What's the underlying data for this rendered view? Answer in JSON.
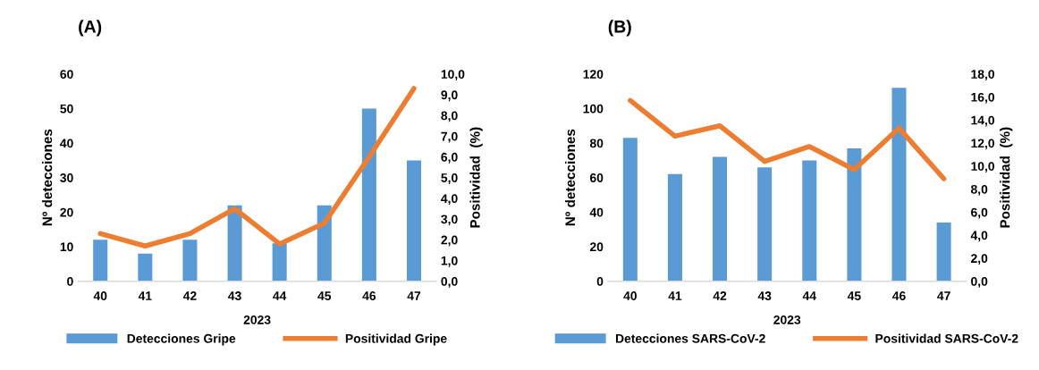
{
  "chart_data": [
    {
      "type": "bar",
      "title": "(A)",
      "xlabel": "2023",
      "ylabel": "Nº detecciones",
      "y2label": "Positividad  (%)",
      "categories": [
        "40",
        "41",
        "42",
        "43",
        "44",
        "45",
        "46",
        "47"
      ],
      "series": [
        {
          "name": "Detecciones Gripe",
          "type": "bar",
          "color": "#5b9bd5",
          "values": [
            12,
            8,
            12,
            22,
            11,
            22,
            50,
            35
          ]
        },
        {
          "name": "Positividad Gripe",
          "type": "line",
          "axis": "y2",
          "color": "#ed7d31",
          "values": [
            2.3,
            1.7,
            2.3,
            3.5,
            1.8,
            2.8,
            6.0,
            9.3
          ]
        }
      ],
      "ylim": [
        0,
        60
      ],
      "yticks": [
        0,
        10,
        20,
        30,
        40,
        50,
        60
      ],
      "y2lim": [
        0,
        10
      ],
      "y2ticks": [
        {
          "value": 0,
          "label": "0,0"
        },
        {
          "value": 1,
          "label": "1,0"
        },
        {
          "value": 2,
          "label": "2,0"
        },
        {
          "value": 3,
          "label": "3,0"
        },
        {
          "value": 4,
          "label": "4,0"
        },
        {
          "value": 5,
          "label": "5,0"
        },
        {
          "value": 6,
          "label": "6,0"
        },
        {
          "value": 7,
          "label": "7,0"
        },
        {
          "value": 8,
          "label": "8,0"
        },
        {
          "value": 9,
          "label": "9,0"
        },
        {
          "value": 10,
          "label": "10,0"
        }
      ],
      "grid": false,
      "legend": "bottom",
      "marker": "none",
      "line_style": "solid"
    },
    {
      "type": "bar",
      "title": "(B)",
      "xlabel": "2023",
      "ylabel": "Nº detecciones",
      "y2label": "Positividad  (%)",
      "categories": [
        "40",
        "41",
        "42",
        "43",
        "44",
        "45",
        "46",
        "47"
      ],
      "series": [
        {
          "name": "Detecciones SARS-CoV-2",
          "type": "bar",
          "color": "#5b9bd5",
          "values": [
            83,
            62,
            72,
            66,
            70,
            77,
            112,
            34
          ]
        },
        {
          "name": "Positividad SARS-CoV-2",
          "type": "line",
          "axis": "y2",
          "color": "#ed7d31",
          "values": [
            15.7,
            12.6,
            13.5,
            10.4,
            11.7,
            9.7,
            13.3,
            8.9
          ]
        }
      ],
      "ylim": [
        0,
        120
      ],
      "yticks": [
        0,
        20,
        40,
        60,
        80,
        100,
        120
      ],
      "y2lim": [
        0,
        18
      ],
      "y2ticks": [
        {
          "value": 0,
          "label": "0,0"
        },
        {
          "value": 2,
          "label": "2,0"
        },
        {
          "value": 4,
          "label": "4,0"
        },
        {
          "value": 6,
          "label": "6,0"
        },
        {
          "value": 8,
          "label": "8,0"
        },
        {
          "value": 10,
          "label": "10,0"
        },
        {
          "value": 12,
          "label": "12,0"
        },
        {
          "value": 14,
          "label": "14,0"
        },
        {
          "value": 16,
          "label": "16,0"
        },
        {
          "value": 18,
          "label": "18,0"
        }
      ],
      "grid": false,
      "legend": "bottom",
      "marker": "none",
      "line_style": "solid"
    }
  ]
}
